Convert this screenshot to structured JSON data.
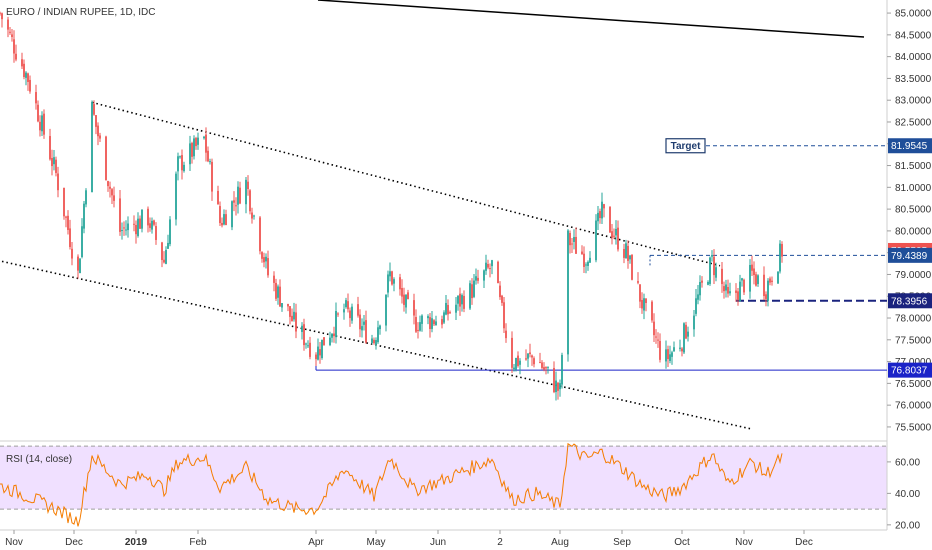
{
  "chart_data": {
    "type": "candlestick",
    "title": "EURO / INDIAN RUPEE, 1D, IDC",
    "colors": {
      "up": "#26a69a",
      "down": "#ef5350",
      "rsi_line": "#f57c00",
      "rsi_band": "#e6ccff",
      "level_line": "#1a237e",
      "target_line": "#1f4e99",
      "channel_line": "#000000"
    },
    "price_axis": {
      "ylim": [
        75.2,
        85.3
      ],
      "ticks": [
        "85.0000",
        "84.5000",
        "84.0000",
        "83.5000",
        "83.0000",
        "82.5000",
        "82.0000",
        "81.5000",
        "81.0000",
        "80.5000",
        "80.0000",
        "79.5000",
        "79.0000",
        "78.5000",
        "78.0000",
        "77.5000",
        "77.0000",
        "76.5000",
        "76.0000",
        "75.5000"
      ]
    },
    "x_axis": {
      "ticks": [
        "Nov",
        "Dec",
        "2019",
        "Feb",
        "Apr",
        "May",
        "Jun",
        "2",
        "Aug",
        "Sep",
        "Oct",
        "Nov",
        "Dec"
      ],
      "start_date": "2018-10-25"
    },
    "annotations": {
      "target_label": "Target",
      "target_value": "81.9545",
      "level_upper": "79.4389",
      "level_lower": "78.3956",
      "level_bottom": "76.8037",
      "last_price": "79.5505"
    },
    "rsi": {
      "label": "RSI (14, close)",
      "ylim": [
        18,
        72
      ],
      "ticks": [
        "60.00",
        "40.00",
        "20.00"
      ],
      "band": [
        30,
        70
      ]
    },
    "price_path": [
      [
        "2018-10-25",
        85.0
      ],
      [
        "2018-11-08",
        83.5
      ],
      [
        "2018-11-22",
        81.3
      ],
      [
        "2018-12-03",
        79.0
      ],
      [
        "2018-12-10",
        82.8
      ],
      [
        "2018-12-24",
        80.0
      ],
      [
        "2019-01-07",
        80.3
      ],
      [
        "2019-01-15",
        79.3
      ],
      [
        "2019-01-22",
        81.5
      ],
      [
        "2019-02-04",
        82.1
      ],
      [
        "2019-02-12",
        80.2
      ],
      [
        "2019-02-25",
        81.1
      ],
      [
        "2019-03-08",
        79.0
      ],
      [
        "2019-03-22",
        77.8
      ],
      [
        "2019-04-01",
        77.2
      ],
      [
        "2019-04-15",
        78.2
      ],
      [
        "2019-04-30",
        77.5
      ],
      [
        "2019-05-08",
        79.0
      ],
      [
        "2019-05-20",
        77.9
      ],
      [
        "2019-06-03",
        78.0
      ],
      [
        "2019-06-17",
        78.6
      ],
      [
        "2019-06-28",
        79.2
      ],
      [
        "2019-07-08",
        77.0
      ],
      [
        "2019-07-20",
        77.1
      ],
      [
        "2019-08-01",
        76.3
      ],
      [
        "2019-08-05",
        79.8
      ],
      [
        "2019-08-14",
        79.4
      ],
      [
        "2019-08-22",
        80.4
      ],
      [
        "2019-09-03",
        79.5
      ],
      [
        "2019-09-12",
        78.2
      ],
      [
        "2019-09-22",
        77.0
      ],
      [
        "2019-10-01",
        77.5
      ],
      [
        "2019-10-16",
        79.3
      ],
      [
        "2019-10-24",
        78.4
      ],
      [
        "2019-11-05",
        79.0
      ],
      [
        "2019-11-12",
        78.7
      ],
      [
        "2019-11-20",
        79.55
      ]
    ],
    "rsi_path": [
      [
        "2018-10-25",
        45
      ],
      [
        "2018-11-08",
        38
      ],
      [
        "2018-11-22",
        30
      ],
      [
        "2018-12-03",
        22
      ],
      [
        "2018-12-10",
        64
      ],
      [
        "2018-12-24",
        46
      ],
      [
        "2019-01-07",
        52
      ],
      [
        "2019-01-15",
        42
      ],
      [
        "2019-01-22",
        60
      ],
      [
        "2019-02-04",
        63
      ],
      [
        "2019-02-12",
        44
      ],
      [
        "2019-02-25",
        56
      ],
      [
        "2019-03-08",
        36
      ],
      [
        "2019-03-22",
        30
      ],
      [
        "2019-04-01",
        30
      ],
      [
        "2019-04-15",
        56
      ],
      [
        "2019-04-30",
        38
      ],
      [
        "2019-05-08",
        63
      ],
      [
        "2019-05-20",
        42
      ],
      [
        "2019-06-03",
        48
      ],
      [
        "2019-06-17",
        56
      ],
      [
        "2019-06-28",
        62
      ],
      [
        "2019-07-08",
        36
      ],
      [
        "2019-07-20",
        40
      ],
      [
        "2019-08-01",
        32
      ],
      [
        "2019-08-05",
        71
      ],
      [
        "2019-08-14",
        62
      ],
      [
        "2019-08-22",
        66
      ],
      [
        "2019-09-03",
        54
      ],
      [
        "2019-09-12",
        44
      ],
      [
        "2019-09-22",
        38
      ],
      [
        "2019-10-01",
        44
      ],
      [
        "2019-10-16",
        65
      ],
      [
        "2019-10-24",
        46
      ],
      [
        "2019-11-05",
        60
      ],
      [
        "2019-11-12",
        52
      ],
      [
        "2019-11-20",
        63
      ]
    ],
    "channel_upper": [
      [
        "2018-12-10",
        82.95
      ],
      [
        "2019-10-20",
        79.2
      ]
    ],
    "channel_lower": [
      [
        "2018-10-26",
        79.3
      ],
      [
        "2019-11-05",
        75.45
      ]
    ],
    "long_trend": [
      [
        "2019-04-02",
        85.3
      ],
      [
        "2019-12-31",
        84.45
      ]
    ]
  }
}
